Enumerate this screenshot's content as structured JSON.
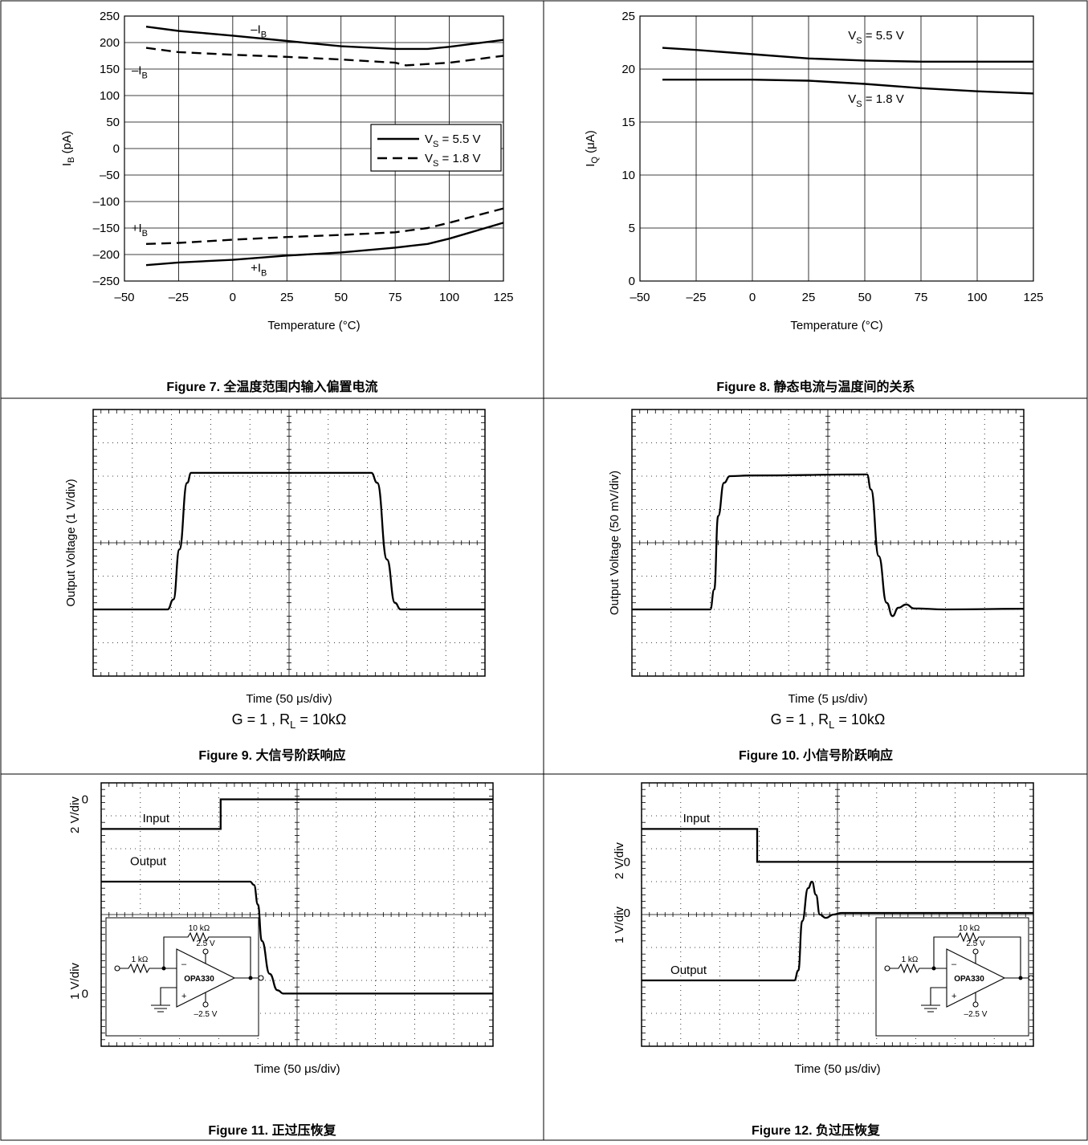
{
  "chart_data": [
    {
      "type": "line",
      "figure": "Figure 7.",
      "caption": "全温度范围内输入偏置电流",
      "xlabel": "Temperature (°C)",
      "ylabel": "I_B (pA)",
      "xlim": [
        -50,
        125
      ],
      "ylim": [
        -250,
        250
      ],
      "xticks": [
        -50,
        -25,
        0,
        25,
        50,
        75,
        100,
        125
      ],
      "yticks": [
        250,
        200,
        150,
        100,
        50,
        0,
        -50,
        -100,
        -150,
        -200,
        -250
      ],
      "xtick_labels": [
        "–50",
        "–25",
        "0",
        "25",
        "50",
        "75",
        "100",
        "125"
      ],
      "ytick_labels": [
        "250",
        "200",
        "150",
        "100",
        "50",
        "0",
        "–50",
        "–100",
        "–150",
        "–200",
        "–250"
      ],
      "grid": true,
      "legend": {
        "position": "right",
        "entries": [
          {
            "label": "V_S = 5.5 V",
            "style": "solid"
          },
          {
            "label": "V_S = 1.8 V",
            "style": "dashed"
          }
        ]
      },
      "series": [
        {
          "name": "V_S = 5.5 V",
          "style": "solid",
          "x": [
            -40,
            -25,
            0,
            25,
            50,
            75,
            90,
            100,
            125
          ],
          "y": [
            230,
            222,
            213,
            203,
            193,
            188,
            188,
            192,
            205
          ]
        },
        {
          "name": "V_S = 1.8 V",
          "style": "dashed",
          "x": [
            -40,
            -25,
            0,
            25,
            50,
            75,
            80,
            100,
            125
          ],
          "y": [
            190,
            182,
            177,
            173,
            168,
            162,
            157,
            162,
            175
          ]
        },
        {
          "name": "V_S = 5.5 V",
          "style": "solid",
          "x": [
            -40,
            -25,
            0,
            25,
            50,
            75,
            90,
            100,
            125
          ],
          "y": [
            -220,
            -215,
            -210,
            -202,
            -196,
            -187,
            -180,
            -170,
            -140
          ]
        },
        {
          "name": "V_S = 1.8 V",
          "style": "dashed",
          "x": [
            -40,
            -25,
            0,
            25,
            50,
            75,
            90,
            100,
            125
          ],
          "y": [
            -180,
            -178,
            -172,
            -167,
            -163,
            -158,
            -150,
            -140,
            -113
          ]
        }
      ],
      "annotations": [
        {
          "text": "–I_B",
          "x": 12,
          "y": 225
        },
        {
          "text": "–I_B",
          "x": -43,
          "y": 148
        },
        {
          "text": "+I_B",
          "x": -43,
          "y": -150
        },
        {
          "text": "+I_B",
          "x": 12,
          "y": -225
        }
      ]
    },
    {
      "type": "line",
      "figure": "Figure 8.",
      "caption": "静态电流与温度间的关系",
      "xlabel": "Temperature (°C)",
      "ylabel": "I_Q (μA)",
      "xlim": [
        -50,
        125
      ],
      "ylim": [
        0,
        25
      ],
      "xticks": [
        -50,
        -25,
        0,
        25,
        50,
        75,
        100,
        125
      ],
      "yticks": [
        25,
        20,
        15,
        10,
        5,
        0
      ],
      "xtick_labels": [
        "–50",
        "–25",
        "0",
        "25",
        "50",
        "75",
        "100",
        "125"
      ],
      "ytick_labels": [
        "25",
        "20",
        "15",
        "10",
        "5",
        "0"
      ],
      "grid": true,
      "series": [
        {
          "name": "V_S = 5.5 V",
          "style": "solid",
          "x": [
            -40,
            -25,
            0,
            25,
            50,
            75,
            100,
            125
          ],
          "y": [
            22.0,
            21.8,
            21.4,
            21.0,
            20.8,
            20.7,
            20.7,
            20.7
          ]
        },
        {
          "name": "V_S = 1.8 V",
          "style": "solid",
          "x": [
            -40,
            -25,
            0,
            25,
            50,
            75,
            100,
            125
          ],
          "y": [
            19.0,
            19.0,
            19.0,
            18.9,
            18.6,
            18.2,
            17.9,
            17.7
          ]
        }
      ],
      "annotations": [
        {
          "text": "V_S = 5.5 V",
          "x": 55,
          "y": 23.2
        },
        {
          "text": "V_S = 1.8 V",
          "x": 55,
          "y": 17.2
        }
      ]
    },
    {
      "type": "line",
      "figure": "Figure 9.",
      "caption": "大信号阶跃响应",
      "xlabel": "Time (50 μs/div)",
      "ylabel": "Output Voltage (1 V/div)",
      "condition": "G = 1 , R_L = 10kΩ",
      "xlim": [
        0,
        10
      ],
      "ylim": [
        0,
        8
      ],
      "grid": "oscilloscope",
      "series": [
        {
          "name": "Output",
          "style": "solid",
          "x": [
            0,
            1.9,
            2.05,
            2.2,
            2.4,
            2.5,
            7.1,
            7.25,
            7.5,
            7.7,
            7.85,
            8.0,
            10
          ],
          "y": [
            2,
            2,
            2.3,
            3.8,
            5.8,
            6.1,
            6.1,
            5.8,
            3.5,
            2.2,
            2.0,
            2.0,
            2.0
          ]
        }
      ]
    },
    {
      "type": "line",
      "figure": "Figure 10.",
      "caption": "小信号阶跃响应",
      "xlabel": "Time (5 μs/div)",
      "ylabel": "Output Voltage (50 mV/div)",
      "condition": "G = 1 , R_L = 10kΩ",
      "xlim": [
        0,
        10
      ],
      "ylim": [
        0,
        8
      ],
      "grid": "oscilloscope",
      "series": [
        {
          "name": "Output",
          "style": "solid",
          "x": [
            0,
            2.0,
            2.1,
            2.2,
            2.35,
            2.5,
            3,
            6,
            6.1,
            6.3,
            6.5,
            6.65,
            6.8,
            7.0,
            7.2,
            8,
            10
          ],
          "y": [
            2,
            2,
            2.6,
            4.8,
            5.8,
            6.0,
            6.02,
            6.05,
            5.6,
            3.6,
            2.2,
            1.8,
            2.05,
            2.15,
            2.03,
            2.0,
            2.02
          ]
        }
      ]
    },
    {
      "type": "line",
      "figure": "Figure 11.",
      "caption": "正过压恢复",
      "xlabel": "Time (50 μs/div)",
      "ylabel_top": "2 V/div",
      "ylabel_bottom": "1 V/div",
      "zero_labels": [
        "0",
        "0"
      ],
      "xlim": [
        0,
        10
      ],
      "ylim": [
        0,
        8
      ],
      "grid": "oscilloscope",
      "series": [
        {
          "name": "Input",
          "style": "solid",
          "x": [
            0,
            3.05,
            3.05,
            10
          ],
          "y": [
            6.6,
            6.6,
            7.5,
            7.5
          ]
        },
        {
          "name": "Output",
          "style": "solid",
          "x": [
            0,
            3.8,
            3.9,
            4.0,
            4.1,
            4.3,
            4.5,
            4.65,
            10
          ],
          "y": [
            5.0,
            5.0,
            4.9,
            4.3,
            3.2,
            2.2,
            1.7,
            1.6,
            1.6
          ]
        }
      ],
      "annotations": [
        {
          "text": "Input",
          "x": 1.4,
          "y": 6.8
        },
        {
          "text": "Output",
          "x": 1.2,
          "y": 5.5
        }
      ],
      "inset_schematic": {
        "components": [
          "1 kΩ",
          "10 kΩ",
          "2.5 V",
          "–2.5 V",
          "OPA330"
        ],
        "pins": [
          "–",
          "+"
        ]
      }
    },
    {
      "type": "line",
      "figure": "Figure 12.",
      "caption": "负过压恢复",
      "xlabel": "Time (50 μs/div)",
      "ylabel_top": "2 V/div",
      "ylabel_bottom": "1 V/div",
      "zero_labels": [
        "0",
        "0"
      ],
      "xlim": [
        0,
        10
      ],
      "ylim": [
        0,
        8
      ],
      "grid": "oscilloscope",
      "series": [
        {
          "name": "Input",
          "style": "solid",
          "x": [
            0,
            2.95,
            2.95,
            10
          ],
          "y": [
            6.6,
            6.6,
            5.6,
            5.6
          ]
        },
        {
          "name": "Output",
          "style": "solid",
          "x": [
            0,
            3.9,
            4.0,
            4.1,
            4.25,
            4.35,
            4.45,
            4.55,
            4.7,
            4.9,
            5.1,
            10
          ],
          "y": [
            2.0,
            2.0,
            2.3,
            3.8,
            4.8,
            5.0,
            4.6,
            4.0,
            3.9,
            4.0,
            4.05,
            4.05
          ]
        }
      ],
      "annotations": [
        {
          "text": "Input",
          "x": 1.4,
          "y": 6.8
        },
        {
          "text": "Output",
          "x": 1.2,
          "y": 2.2
        }
      ],
      "inset_schematic": {
        "components": [
          "1 kΩ",
          "10 kΩ",
          "2.5 V",
          "–2.5 V",
          "OPA330"
        ],
        "pins": [
          "–",
          "+"
        ]
      }
    }
  ]
}
